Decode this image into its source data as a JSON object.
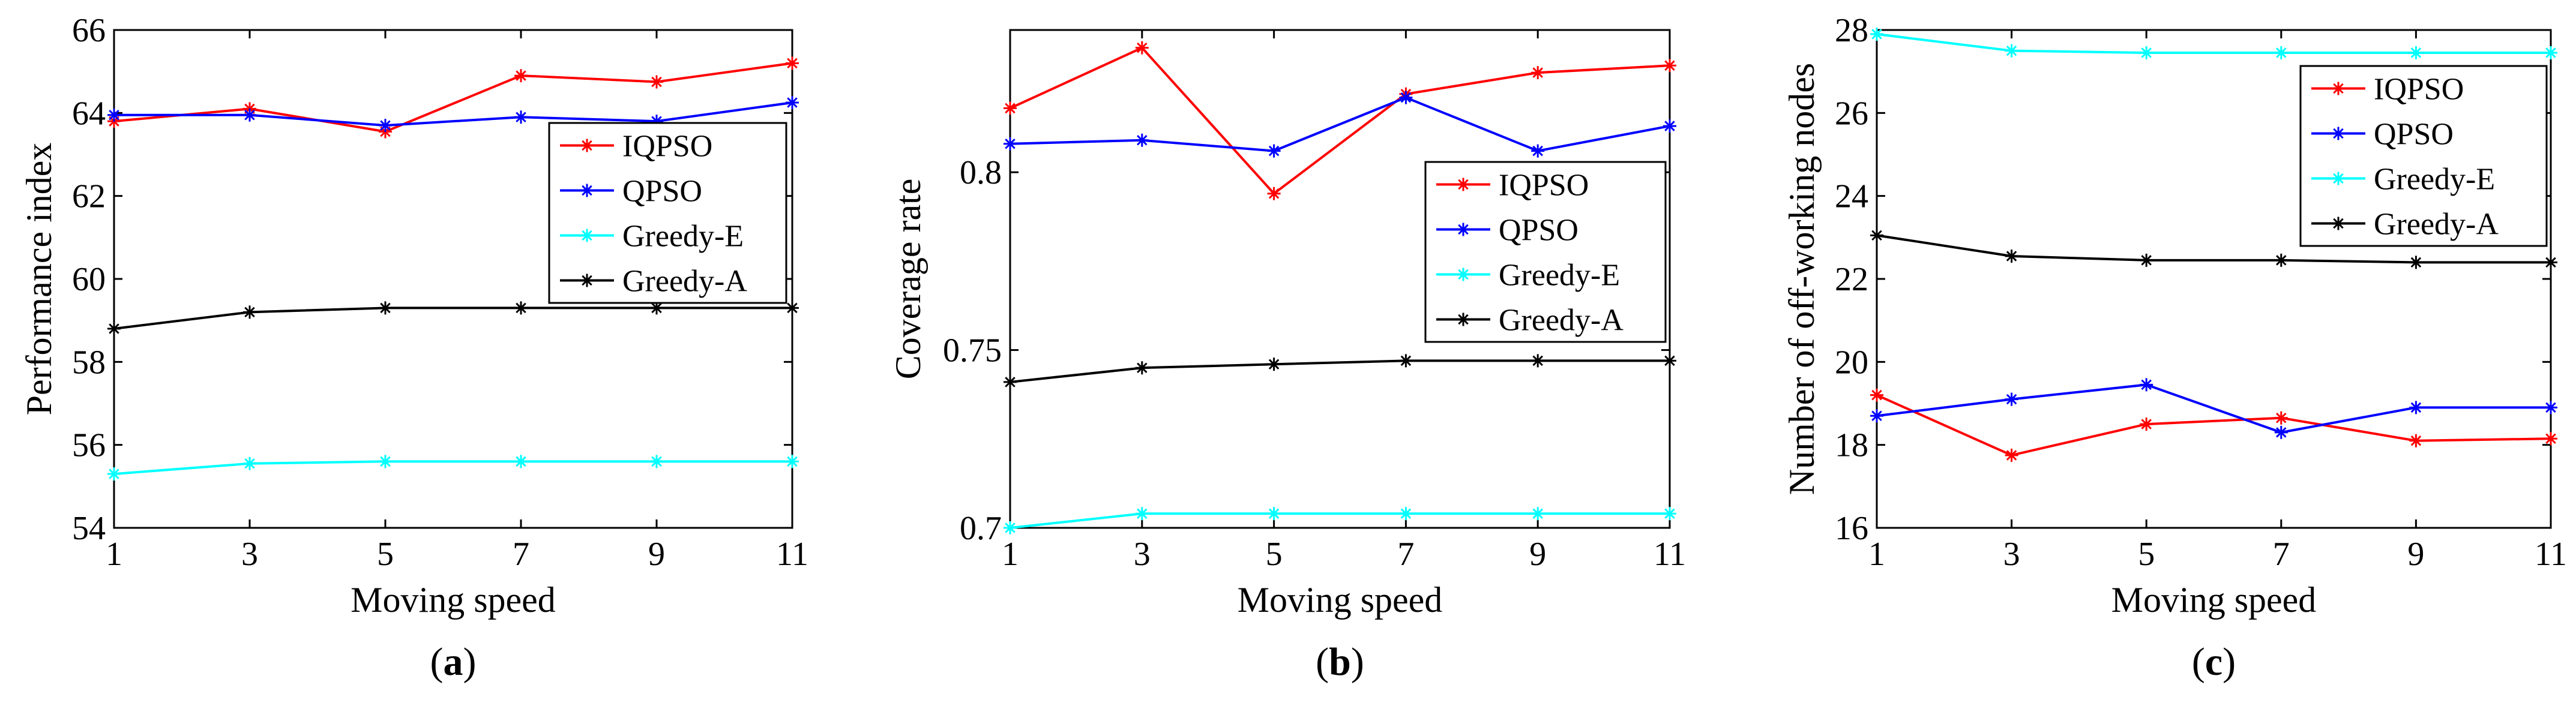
{
  "chart_data": [
    {
      "id": "a",
      "caption": "a",
      "type": "line",
      "xlabel": "Moving speed",
      "ylabel": "Performance index",
      "x": [
        1,
        3,
        5,
        7,
        9,
        11
      ],
      "xlim": [
        1,
        11
      ],
      "ylim": [
        54,
        66
      ],
      "yticks": [
        54,
        56,
        58,
        60,
        62,
        64,
        66
      ],
      "ytick_labels": [
        "54",
        "56",
        "58",
        "60",
        "62",
        "64",
        "66"
      ],
      "legend_position": "center-right",
      "series": [
        {
          "name": "IQPSO",
          "color": "#ff0000",
          "values": [
            63.8,
            64.1,
            63.55,
            64.9,
            64.75,
            65.2
          ]
        },
        {
          "name": "QPSO",
          "color": "#0000ff",
          "values": [
            63.95,
            63.95,
            63.7,
            63.9,
            63.8,
            64.25
          ]
        },
        {
          "name": "Greedy-E",
          "color": "#00ffff",
          "values": [
            55.3,
            55.55,
            55.6,
            55.6,
            55.6,
            55.6
          ]
        },
        {
          "name": "Greedy-A",
          "color": "#000000",
          "values": [
            58.8,
            59.2,
            59.3,
            59.3,
            59.3,
            59.3
          ]
        }
      ]
    },
    {
      "id": "b",
      "caption": "b",
      "type": "line",
      "xlabel": "Moving speed",
      "ylabel": "Coverage rate",
      "x": [
        1,
        3,
        5,
        7,
        9,
        11
      ],
      "xlim": [
        1,
        11
      ],
      "ylim": [
        0.7,
        0.84
      ],
      "yticks": [
        0.7,
        0.75,
        0.8
      ],
      "ytick_labels": [
        "0.7",
        "0.75",
        "0.8"
      ],
      "legend_position": "center-right",
      "series": [
        {
          "name": "IQPSO",
          "color": "#ff0000",
          "values": [
            0.818,
            0.835,
            0.794,
            0.822,
            0.828,
            0.83
          ]
        },
        {
          "name": "QPSO",
          "color": "#0000ff",
          "values": [
            0.808,
            0.809,
            0.806,
            0.821,
            0.806,
            0.813
          ]
        },
        {
          "name": "Greedy-E",
          "color": "#00ffff",
          "values": [
            0.7,
            0.704,
            0.704,
            0.704,
            0.704,
            0.704
          ]
        },
        {
          "name": "Greedy-A",
          "color": "#000000",
          "values": [
            0.741,
            0.745,
            0.746,
            0.747,
            0.747,
            0.747
          ]
        }
      ]
    },
    {
      "id": "c",
      "caption": "c",
      "type": "line",
      "xlabel": "Moving speed",
      "ylabel": "Number of off-working nodes",
      "x": [
        1,
        3,
        5,
        7,
        9,
        11
      ],
      "xlim": [
        1,
        11
      ],
      "ylim": [
        16,
        28
      ],
      "yticks": [
        16,
        18,
        20,
        22,
        24,
        26,
        28
      ],
      "ytick_labels": [
        "16",
        "18",
        "20",
        "22",
        "24",
        "26",
        "28"
      ],
      "legend_position": "top-right",
      "series": [
        {
          "name": "IQPSO",
          "color": "#ff0000",
          "values": [
            19.2,
            17.75,
            18.5,
            18.65,
            18.1,
            18.15
          ]
        },
        {
          "name": "QPSO",
          "color": "#0000ff",
          "values": [
            18.7,
            19.1,
            19.45,
            18.3,
            18.9,
            18.9
          ]
        },
        {
          "name": "Greedy-E",
          "color": "#00ffff",
          "values": [
            27.9,
            27.5,
            27.45,
            27.45,
            27.45,
            27.45
          ]
        },
        {
          "name": "Greedy-A",
          "color": "#000000",
          "values": [
            23.05,
            22.55,
            22.45,
            22.45,
            22.4,
            22.4
          ]
        }
      ]
    }
  ]
}
